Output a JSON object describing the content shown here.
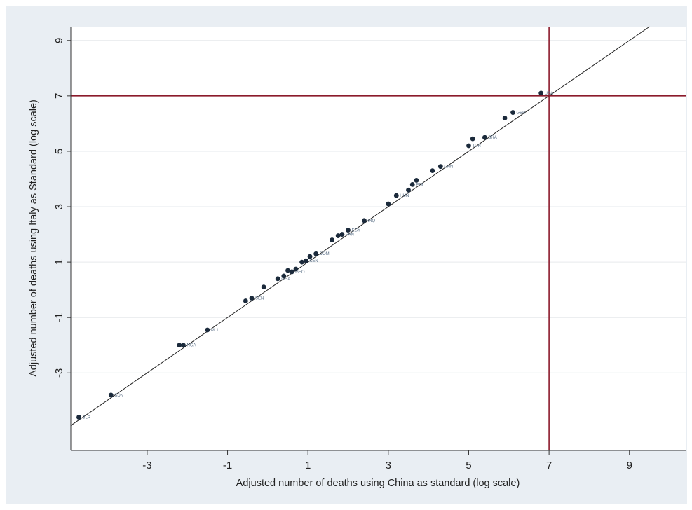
{
  "chart_data": {
    "type": "scatter",
    "title": "",
    "xlabel": "Adjusted number of deaths using China as standard (log scale)",
    "ylabel": "Adjusted number of deaths using Italy as Standard (log scale)",
    "xlim": [
      -4.9,
      10.4
    ],
    "ylim": [
      -5.8,
      9.5
    ],
    "xticks": [
      -3,
      -1,
      1,
      3,
      5,
      7,
      9
    ],
    "yticks": [
      -3,
      -1,
      1,
      3,
      5,
      7,
      9
    ],
    "grid": "horizontal",
    "reference_lines": [
      {
        "type": "identity"
      },
      {
        "type": "vertical",
        "value": 7,
        "color": "#8b1a2b"
      },
      {
        "type": "horizontal",
        "value": 7,
        "color": "#8b1a2b"
      }
    ],
    "colors": {
      "points": "#1b2a3b",
      "reference": "#8b1a2b",
      "identity": "#222222",
      "background": "#e9eef3"
    },
    "series": [
      {
        "points": [
          {
            "x": -4.7,
            "y": -4.6,
            "label": "BLR"
          },
          {
            "x": -3.9,
            "y": -3.8,
            "label": "SDN"
          },
          {
            "x": -2.2,
            "y": -2.0
          },
          {
            "x": -2.1,
            "y": -2.0,
            "label": "NGA"
          },
          {
            "x": -1.5,
            "y": -1.45,
            "label": "MLI"
          },
          {
            "x": -0.55,
            "y": -0.4
          },
          {
            "x": -0.4,
            "y": -0.3,
            "label": "SEN"
          },
          {
            "x": -0.1,
            "y": 0.1
          },
          {
            "x": 0.25,
            "y": 0.4,
            "label": "GHA"
          },
          {
            "x": 0.4,
            "y": 0.5
          },
          {
            "x": 0.5,
            "y": 0.7
          },
          {
            "x": 0.6,
            "y": 0.65,
            "label": "GEO"
          },
          {
            "x": 0.7,
            "y": 0.75
          },
          {
            "x": 0.85,
            "y": 1.0
          },
          {
            "x": 0.95,
            "y": 1.05,
            "label": "KEN"
          },
          {
            "x": 1.05,
            "y": 1.2
          },
          {
            "x": 1.2,
            "y": 1.3,
            "label": "DOM"
          },
          {
            "x": 1.6,
            "y": 1.8
          },
          {
            "x": 1.75,
            "y": 1.95
          },
          {
            "x": 1.85,
            "y": 2.0,
            "label": "PAN"
          },
          {
            "x": 2.0,
            "y": 2.15,
            "label": "EGY"
          },
          {
            "x": 2.4,
            "y": 2.5,
            "label": "IRQ"
          },
          {
            "x": 3.0,
            "y": 3.1
          },
          {
            "x": 3.2,
            "y": 3.4,
            "label": "HUN"
          },
          {
            "x": 3.5,
            "y": 3.6
          },
          {
            "x": 3.6,
            "y": 3.8,
            "label": "POL"
          },
          {
            "x": 3.7,
            "y": 3.95
          },
          {
            "x": 4.1,
            "y": 4.3
          },
          {
            "x": 4.3,
            "y": 4.45,
            "label": "CHN"
          },
          {
            "x": 5.0,
            "y": 5.2,
            "label": "TUR"
          },
          {
            "x": 5.1,
            "y": 5.45
          },
          {
            "x": 5.4,
            "y": 5.5,
            "label": "BRA"
          },
          {
            "x": 5.9,
            "y": 6.2
          },
          {
            "x": 6.1,
            "y": 6.4,
            "label": "GBR"
          },
          {
            "x": 6.8,
            "y": 7.1,
            "label": "USA"
          }
        ]
      }
    ]
  }
}
